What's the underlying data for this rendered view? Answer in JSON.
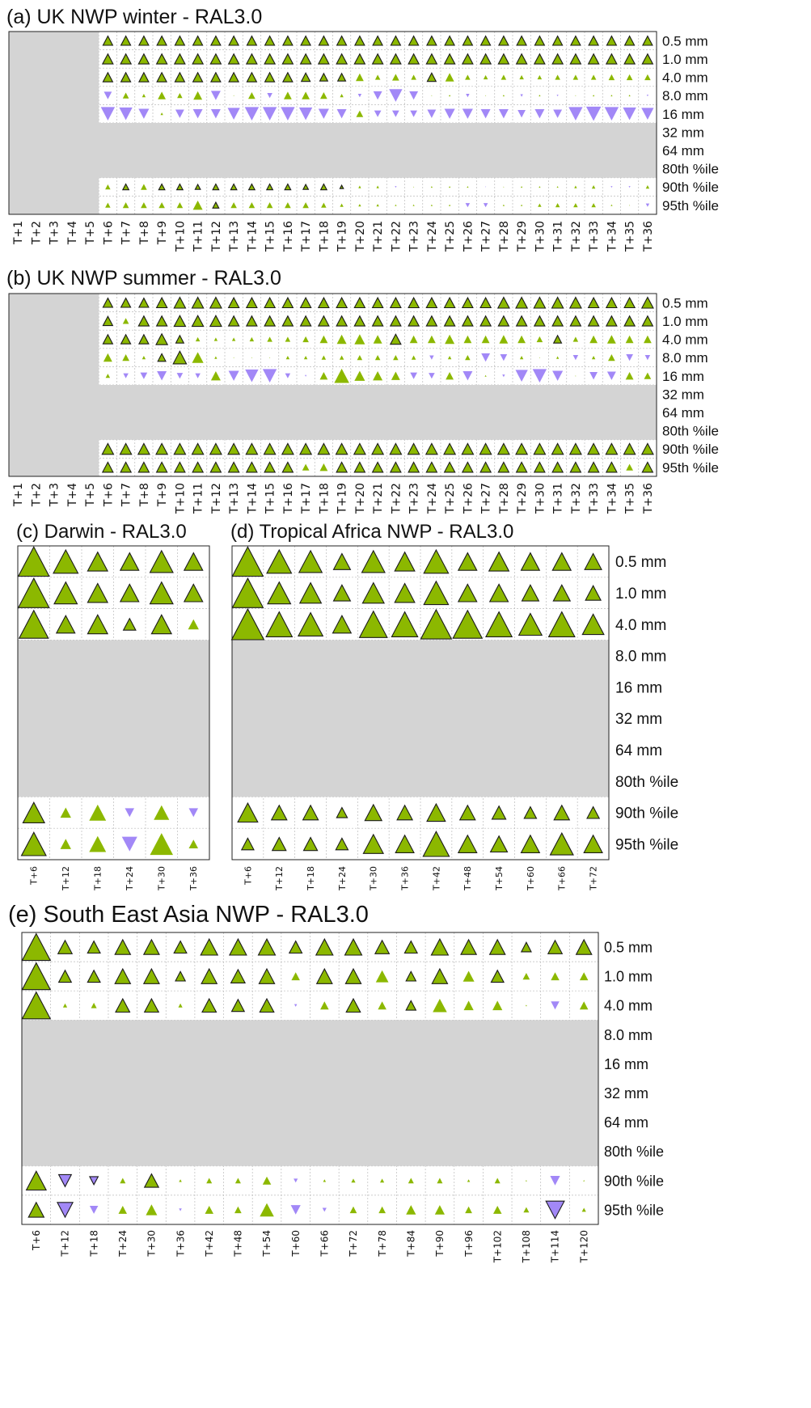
{
  "figure_colors": {
    "better": "#8cb800",
    "worse": "#a288f7",
    "masked": "#d4d4d4",
    "grid": "#bbbbbb"
  },
  "chart_data": [
    {
      "id": "a",
      "type": "heatmap",
      "title": "(a) UK NWP winter - RAL3.0",
      "rows": [
        "0.5 mm",
        "1.0 mm",
        "4.0 mm",
        "8.0 mm",
        "16 mm",
        "32 mm",
        "64 mm",
        "80th %ile",
        "90th %ile",
        "95th %ile"
      ],
      "columns": [
        "T+1",
        "T+2",
        "T+3",
        "T+4",
        "T+5",
        "T+6",
        "T+7",
        "T+8",
        "T+9",
        "T+10",
        "T+11",
        "T+12",
        "T+13",
        "T+14",
        "T+15",
        "T+16",
        "T+17",
        "T+18",
        "T+19",
        "T+20",
        "T+21",
        "T+22",
        "T+23",
        "T+24",
        "T+25",
        "T+26",
        "T+27",
        "T+28",
        "T+29",
        "T+30",
        "T+31",
        "T+32",
        "T+33",
        "T+34",
        "T+35",
        "T+36"
      ],
      "masked_columns_before": 5,
      "masked_rows": [
        "32 mm",
        "64 mm",
        "80th %ile"
      ],
      "value_note": "signed relative size of marker: positive = green upward triangle, negative = purple downward triangle; bold outline = significant",
      "values": {
        "0.5 mm": [
          0.55,
          0.55,
          0.55,
          0.55,
          0.55,
          0.55,
          0.55,
          0.55,
          0.55,
          0.55,
          0.55,
          0.55,
          0.55,
          0.55,
          0.55,
          0.55,
          0.55,
          0.55,
          0.55,
          0.55,
          0.55,
          0.55,
          0.55,
          0.55,
          0.55,
          0.55,
          0.55,
          0.55,
          0.55,
          0.55,
          0.55
        ],
        "1.0 mm": [
          0.6,
          0.6,
          0.6,
          0.6,
          0.6,
          0.6,
          0.6,
          0.6,
          0.6,
          0.6,
          0.6,
          0.6,
          0.6,
          0.6,
          0.6,
          0.6,
          0.6,
          0.6,
          0.6,
          0.6,
          0.6,
          0.6,
          0.6,
          0.6,
          0.6,
          0.6,
          0.6,
          0.6,
          0.6,
          0.6,
          0.6
        ],
        "4.0 mm": [
          0.55,
          0.55,
          0.55,
          0.55,
          0.55,
          0.55,
          0.55,
          0.55,
          0.55,
          0.55,
          0.55,
          0.5,
          0.45,
          0.45,
          0.45,
          0.3,
          0.4,
          0.3,
          0.5,
          0.5,
          0.3,
          0.25,
          0.3,
          0.25,
          0.25,
          0.3,
          0.3,
          0.3,
          0.35,
          0.35,
          0.35
        ],
        "8.0 mm": [
          -0.45,
          0.35,
          0.2,
          0.45,
          0.3,
          0.5,
          -0.55,
          0.05,
          0.4,
          -0.3,
          0.45,
          0.45,
          0.4,
          0.2,
          -0.2,
          -0.5,
          -0.75,
          -0.5,
          0.05,
          0.1,
          -0.2,
          0.05,
          0.1,
          -0.15,
          0.1,
          -0.1,
          0.05,
          0.1,
          0.1,
          0.1,
          -0.1
        ],
        "16 mm": [
          -0.8,
          -0.75,
          -0.6,
          0.15,
          -0.5,
          -0.55,
          -0.55,
          -0.7,
          -0.8,
          -0.8,
          -0.8,
          -0.75,
          -0.6,
          -0.55,
          0.4,
          -0.4,
          -0.4,
          -0.4,
          -0.5,
          -0.6,
          -0.6,
          -0.55,
          -0.55,
          -0.45,
          -0.55,
          -0.5,
          -0.8,
          -0.85,
          -0.8,
          -0.75,
          -0.7
        ],
        "90th %ile": [
          0.3,
          0.35,
          0.35,
          0.35,
          0.35,
          0.3,
          0.35,
          0.35,
          0.35,
          0.35,
          0.35,
          0.3,
          0.35,
          0.2,
          0.15,
          0.15,
          -0.1,
          0.05,
          0.1,
          0.1,
          0.1,
          -0.05,
          0.05,
          0.1,
          0.1,
          0.1,
          0.15,
          0.2,
          -0.1,
          -0.1,
          0.2
        ],
        "95th %ile": [
          0.3,
          0.35,
          0.35,
          0.35,
          0.35,
          0.55,
          0.35,
          0.35,
          0.35,
          0.35,
          0.35,
          0.35,
          0.3,
          0.2,
          0.15,
          0.15,
          0.1,
          0.1,
          0.1,
          0.1,
          -0.25,
          -0.25,
          0.1,
          0.1,
          0.2,
          0.25,
          0.25,
          0.25,
          0.1,
          0.05,
          -0.2
        ]
      },
      "significant": {
        "0.5 mm": "all",
        "1.0 mm": "all",
        "4.0 mm": [
          0,
          1,
          2,
          3,
          4,
          5,
          6,
          7,
          8,
          9,
          10,
          11,
          12,
          13,
          18
        ],
        "90th %ile": [
          1,
          3,
          4,
          5,
          6,
          7,
          8,
          9,
          10,
          11,
          12,
          13
        ],
        "95th %ile": [
          6
        ]
      }
    },
    {
      "id": "b",
      "type": "heatmap",
      "title": "(b) UK NWP summer - RAL3.0",
      "rows": [
        "0.5 mm",
        "1.0 mm",
        "4.0 mm",
        "8.0 mm",
        "16 mm",
        "32 mm",
        "64 mm",
        "80th %ile",
        "90th %ile",
        "95th %ile"
      ],
      "columns": [
        "T+1",
        "T+2",
        "T+3",
        "T+4",
        "T+5",
        "T+6",
        "T+7",
        "T+8",
        "T+9",
        "T+10",
        "T+11",
        "T+12",
        "T+13",
        "T+14",
        "T+15",
        "T+16",
        "T+17",
        "T+18",
        "T+19",
        "T+20",
        "T+21",
        "T+22",
        "T+23",
        "T+24",
        "T+25",
        "T+26",
        "T+27",
        "T+28",
        "T+29",
        "T+30",
        "T+31",
        "T+32",
        "T+33",
        "T+34",
        "T+35",
        "T+36"
      ],
      "masked_columns_before": 5,
      "masked_rows": [
        "32 mm",
        "64 mm",
        "80th %ile"
      ],
      "values": {
        "0.5 mm": [
          0.55,
          0.55,
          0.55,
          0.6,
          0.65,
          0.65,
          0.65,
          0.6,
          0.6,
          0.6,
          0.6,
          0.6,
          0.6,
          0.6,
          0.6,
          0.6,
          0.6,
          0.6,
          0.6,
          0.6,
          0.6,
          0.6,
          0.65,
          0.65,
          0.65,
          0.65,
          0.65,
          0.6,
          0.6,
          0.6,
          0.65
        ],
        "1.0 mm": [
          0.55,
          0.35,
          0.6,
          0.6,
          0.65,
          0.65,
          0.65,
          0.6,
          0.6,
          0.6,
          0.6,
          0.6,
          0.6,
          0.6,
          0.6,
          0.6,
          0.6,
          0.6,
          0.6,
          0.6,
          0.6,
          0.6,
          0.6,
          0.6,
          0.6,
          0.6,
          0.6,
          0.6,
          0.6,
          0.6,
          0.6
        ],
        "4.0 mm": [
          0.55,
          0.55,
          0.55,
          0.65,
          0.45,
          0.25,
          0.2,
          0.2,
          0.25,
          0.3,
          0.3,
          0.35,
          0.45,
          0.55,
          0.6,
          0.5,
          0.6,
          0.45,
          0.45,
          0.55,
          0.45,
          0.45,
          0.5,
          0.45,
          0.35,
          0.45,
          0.3,
          0.45,
          0.5,
          0.45,
          0.45
        ],
        "8.0 mm": [
          0.5,
          0.4,
          0.2,
          0.45,
          0.75,
          0.65,
          0.15,
          0.05,
          0.05,
          0.05,
          0.2,
          0.2,
          0.25,
          0.25,
          0.3,
          0.3,
          0.3,
          0.25,
          -0.25,
          0.2,
          0.3,
          -0.5,
          -0.4,
          0.2,
          0.05,
          0.15,
          -0.3,
          0.2,
          0.4,
          -0.4,
          -0.3
        ],
        "16 mm": [
          0.25,
          -0.3,
          -0.4,
          -0.55,
          -0.35,
          -0.3,
          0.55,
          -0.6,
          -0.75,
          -0.8,
          -0.3,
          -0.1,
          0.45,
          0.85,
          0.6,
          0.55,
          0.5,
          -0.4,
          -0.35,
          0.45,
          -0.55,
          0.1,
          -0.15,
          -0.7,
          -0.8,
          -0.6,
          0.05,
          -0.45,
          -0.5,
          0.45,
          0.4
        ],
        "90th %ile": [
          0.65,
          0.65,
          0.65,
          0.65,
          0.65,
          0.65,
          0.65,
          0.65,
          0.65,
          0.65,
          0.65,
          0.65,
          0.65,
          0.65,
          0.65,
          0.65,
          0.65,
          0.65,
          0.65,
          0.65,
          0.65,
          0.65,
          0.65,
          0.65,
          0.65,
          0.65,
          0.65,
          0.65,
          0.65,
          0.65,
          0.65
        ],
        "95th %ile": [
          0.6,
          0.6,
          0.6,
          0.6,
          0.6,
          0.6,
          0.6,
          0.6,
          0.6,
          0.6,
          0.6,
          0.4,
          0.45,
          0.6,
          0.6,
          0.6,
          0.6,
          0.6,
          0.6,
          0.6,
          0.6,
          0.6,
          0.6,
          0.6,
          0.6,
          0.6,
          0.6,
          0.6,
          0.6,
          0.4,
          0.6
        ]
      },
      "significant": {
        "0.5 mm": "all",
        "1.0 mm": [
          0,
          2,
          3,
          4,
          5,
          6,
          7,
          8,
          9,
          10,
          11,
          12,
          13,
          14,
          15,
          16,
          17,
          18,
          19,
          20,
          21,
          22,
          23,
          24,
          25,
          26,
          27,
          28,
          29,
          30
        ],
        "4.0 mm": [
          0,
          1,
          2,
          3,
          4,
          16,
          25
        ],
        "8.0 mm": [
          3,
          4
        ],
        "90th %ile": "all",
        "95th %ile": [
          0,
          1,
          2,
          3,
          4,
          5,
          6,
          7,
          8,
          9,
          10,
          13,
          14,
          15,
          16,
          17,
          18,
          19,
          20,
          21,
          22,
          23,
          24,
          25,
          26,
          27,
          28,
          30
        ]
      }
    },
    {
      "id": "c",
      "type": "heatmap",
      "title": "(c) Darwin - RAL3.0",
      "rows": [
        "0.5 mm",
        "1.0 mm",
        "4.0 mm",
        "8.0 mm",
        "16 mm",
        "32 mm",
        "64 mm",
        "80th %ile",
        "90th %ile",
        "95th %ile"
      ],
      "columns": [
        "T+6",
        "T+12",
        "T+18",
        "T+24",
        "T+30",
        "T+36"
      ],
      "masked_columns_before": 0,
      "masked_rows": [
        "8.0 mm",
        "16 mm",
        "32 mm",
        "64 mm",
        "80th %ile"
      ],
      "values": {
        "0.5 mm": [
          1.0,
          0.8,
          0.65,
          0.6,
          0.75,
          0.6
        ],
        "1.0 mm": [
          1.0,
          0.75,
          0.65,
          0.6,
          0.75,
          0.6
        ],
        "4.0 mm": [
          0.95,
          0.6,
          0.65,
          0.4,
          0.65,
          0.35
        ],
        "90th %ile": [
          0.7,
          0.35,
          0.55,
          -0.3,
          0.5,
          -0.3
        ],
        "95th %ile": [
          0.8,
          0.35,
          0.55,
          -0.5,
          0.75,
          0.3
        ]
      },
      "significant": {
        "0.5 mm": "all",
        "1.0 mm": "all",
        "4.0 mm": [
          0,
          1,
          2,
          3,
          4
        ],
        "90th %ile": [
          0
        ],
        "95th %ile": [
          0
        ]
      }
    },
    {
      "id": "d",
      "type": "heatmap",
      "title": "(d) Tropical Africa NWP - RAL3.0",
      "rows": [
        "0.5 mm",
        "1.0 mm",
        "4.0 mm",
        "8.0 mm",
        "16 mm",
        "32 mm",
        "64 mm",
        "80th %ile",
        "90th %ile",
        "95th %ile"
      ],
      "columns": [
        "T+6",
        "T+12",
        "T+18",
        "T+24",
        "T+30",
        "T+36",
        "T+42",
        "T+48",
        "T+54",
        "T+60",
        "T+66",
        "T+72"
      ],
      "masked_columns_before": 0,
      "masked_rows": [
        "8.0 mm",
        "16 mm",
        "32 mm",
        "64 mm",
        "80th %ile"
      ],
      "values": {
        "0.5 mm": [
          1.0,
          0.8,
          0.75,
          0.55,
          0.75,
          0.65,
          0.8,
          0.6,
          0.65,
          0.6,
          0.6,
          0.55
        ],
        "1.0 mm": [
          1.0,
          0.75,
          0.7,
          0.55,
          0.7,
          0.65,
          0.8,
          0.6,
          0.6,
          0.55,
          0.55,
          0.5
        ],
        "4.0 mm": [
          1.05,
          0.85,
          0.8,
          0.6,
          0.9,
          0.85,
          1.0,
          0.95,
          0.85,
          0.75,
          0.85,
          0.7
        ],
        "90th %ile": [
          0.65,
          0.5,
          0.5,
          0.35,
          0.55,
          0.5,
          0.6,
          0.5,
          0.45,
          0.4,
          0.5,
          0.4
        ],
        "95th %ile": [
          0.4,
          0.45,
          0.45,
          0.4,
          0.65,
          0.6,
          0.85,
          0.6,
          0.55,
          0.6,
          0.75,
          0.6
        ]
      },
      "significant": {
        "0.5 mm": "all",
        "1.0 mm": "all",
        "4.0 mm": "all",
        "90th %ile": "all",
        "95th %ile": "all"
      }
    },
    {
      "id": "e",
      "type": "heatmap",
      "title": "(e) South East Asia NWP - RAL3.0",
      "rows": [
        "0.5 mm",
        "1.0 mm",
        "4.0 mm",
        "8.0 mm",
        "16 mm",
        "32 mm",
        "64 mm",
        "80th %ile",
        "90th %ile",
        "95th %ile"
      ],
      "columns": [
        "T+6",
        "T+12",
        "T+18",
        "T+24",
        "T+30",
        "T+36",
        "T+42",
        "T+48",
        "T+54",
        "T+60",
        "T+66",
        "T+72",
        "T+78",
        "T+84",
        "T+90",
        "T+96",
        "T+102",
        "T+108",
        "T+114",
        "T+120"
      ],
      "masked_columns_before": 0,
      "masked_rows": [
        "8.0 mm",
        "16 mm",
        "32 mm",
        "64 mm",
        "80th %ile"
      ],
      "values": {
        "0.5 mm": [
          1.0,
          0.5,
          0.45,
          0.55,
          0.55,
          0.45,
          0.6,
          0.6,
          0.6,
          0.45,
          0.6,
          0.6,
          0.5,
          0.45,
          0.6,
          0.55,
          0.55,
          0.35,
          0.5,
          0.55
        ],
        "1.0 mm": [
          1.0,
          0.45,
          0.45,
          0.55,
          0.55,
          0.35,
          0.55,
          0.5,
          0.55,
          0.3,
          0.55,
          0.55,
          0.45,
          0.35,
          0.55,
          0.4,
          0.45,
          0.25,
          0.3,
          0.3
        ],
        "4.0 mm": [
          1.0,
          0.15,
          0.2,
          0.5,
          0.5,
          0.15,
          0.5,
          0.45,
          0.5,
          -0.1,
          0.3,
          0.5,
          0.3,
          0.35,
          0.5,
          0.35,
          0.35,
          0.05,
          -0.3,
          0.3
        ],
        "90th %ile": [
          0.7,
          -0.45,
          -0.3,
          0.2,
          0.5,
          0.1,
          0.2,
          0.2,
          0.3,
          -0.15,
          0.1,
          0.15,
          0.15,
          0.2,
          0.2,
          0.1,
          0.2,
          0.05,
          -0.35,
          0.05
        ],
        "95th %ile": [
          0.55,
          -0.55,
          -0.3,
          0.3,
          0.4,
          -0.1,
          0.3,
          0.25,
          0.5,
          -0.35,
          -0.15,
          0.25,
          0.25,
          0.35,
          0.35,
          0.25,
          0.3,
          0.2,
          -0.65,
          0.15
        ]
      },
      "significant": {
        "0.5 mm": [
          0,
          1,
          2,
          3,
          4,
          5,
          6,
          7,
          8,
          9,
          10,
          11,
          12,
          13,
          14,
          15,
          16,
          17,
          18,
          19
        ],
        "1.0 mm": [
          0,
          1,
          2,
          3,
          4,
          5,
          6,
          7,
          8,
          10,
          11,
          13,
          14,
          16
        ],
        "4.0 mm": [
          0,
          3,
          4,
          6,
          7,
          8,
          11,
          13
        ],
        "90th %ile": [
          0,
          1,
          2,
          4
        ],
        "95th %ile": [
          0,
          1,
          18
        ]
      }
    }
  ]
}
